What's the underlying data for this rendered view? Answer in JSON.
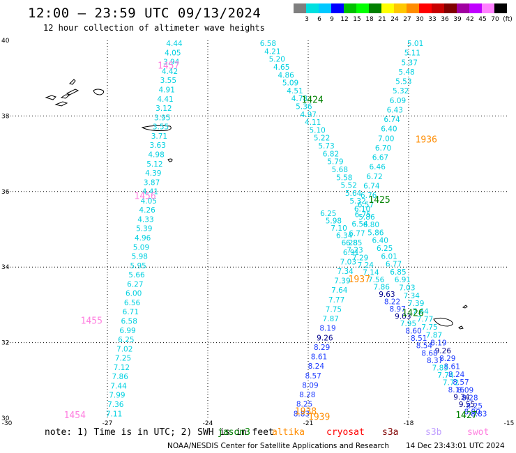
{
  "header": {
    "title": "12:00 – 23:59 UTC 09/13/2024",
    "subtitle": "12 hour collection of altimeter wave heights"
  },
  "scale": {
    "unit": "(ft)",
    "bins": [
      {
        "label": "3",
        "color": "#7f7f7f"
      },
      {
        "label": "6",
        "color": "#00e0e0"
      },
      {
        "label": "9",
        "color": "#00c8ff"
      },
      {
        "label": "12",
        "color": "#0000ff"
      },
      {
        "label": "15",
        "color": "#00c000"
      },
      {
        "label": "18",
        "color": "#00ff00"
      },
      {
        "label": "21",
        "color": "#008000"
      },
      {
        "label": "24",
        "color": "#ffff00"
      },
      {
        "label": "27",
        "color": "#ffc800"
      },
      {
        "label": "30",
        "color": "#ff8c00"
      },
      {
        "label": "33",
        "color": "#ff0000"
      },
      {
        "label": "36",
        "color": "#c80000"
      },
      {
        "label": "39",
        "color": "#800000"
      },
      {
        "label": "42",
        "color": "#a000a0"
      },
      {
        "label": "45",
        "color": "#c000ff"
      },
      {
        "label": "70",
        "color": "#ff80ff"
      },
      {
        "label": "",
        "color": "#000000"
      }
    ]
  },
  "axes": {
    "lon_ticks": [
      {
        "lon": -30,
        "label": "-30"
      },
      {
        "lon": -27,
        "label": "-27"
      },
      {
        "lon": -24,
        "label": "-24"
      },
      {
        "lon": -21,
        "label": "-21"
      },
      {
        "lon": -18,
        "label": "-18"
      },
      {
        "lon": -15,
        "label": "-15"
      }
    ],
    "lat_ticks": [
      {
        "lat": 30,
        "label": "30"
      },
      {
        "lat": 32,
        "label": "32"
      },
      {
        "lat": 34,
        "label": "34"
      },
      {
        "lat": 36,
        "label": "36"
      },
      {
        "lat": 38,
        "label": "38"
      },
      {
        "lat": 40,
        "label": "40"
      }
    ]
  },
  "tracks": [
    {
      "id": "track-1454-1457",
      "values": [
        "7.11",
        "7.36",
        "7.99",
        "7.44",
        "7.86",
        "7.12",
        "7.25",
        "7.02",
        "6.25",
        "6.99",
        "6.58",
        "6.71",
        "6.56",
        "6.00",
        "6.27",
        "5.66",
        "5.95",
        "5.98",
        "5.09",
        "4.96",
        "5.39",
        "4.33",
        "4.26",
        "4.05",
        "4.41",
        "3.87",
        "4.39",
        "5.12",
        "4.98",
        "3.63",
        "3.71",
        "3.55",
        "3.95",
        "3.12",
        "4.41",
        "4.91",
        "3.55",
        "4.42",
        "3.94",
        "4.05",
        "4.44"
      ],
      "start": [
        -26.8,
        30.05
      ],
      "end": [
        -25.0,
        39.85
      ]
    },
    {
      "id": "track-1424-1427",
      "values": [
        "6.58",
        "4.21",
        "5.20",
        "4.65",
        "4.86",
        "5.09",
        "4.51",
        "4.78",
        "5.36",
        "4.97",
        "4.11",
        "5.10",
        "5.22",
        "5.73",
        "6.82",
        "5.79",
        "5.68",
        "5.58",
        "5.52",
        "5.64",
        "5.32",
        "6.10",
        "5.86",
        "6.80",
        "5.86",
        "6.40",
        "6.25",
        "6.01",
        "6.77",
        "6.85",
        "6.91",
        "7.03",
        "7.34",
        "7.39",
        "7.64",
        "7.77",
        "7.75",
        "7.87",
        "8.19",
        "9.26",
        "8.29",
        "8.61",
        "8.24",
        "8.57",
        "8.09",
        "8.28",
        "8.25",
        "8.83"
      ],
      "start": [
        -22.2,
        39.85
      ],
      "end": [
        -15.9,
        30.05
      ]
    },
    {
      "id": "track-1936-1939",
      "values": [
        "8.83",
        "8.25",
        "8.28",
        "8.09",
        "8.57",
        "8.24",
        "8.61",
        "8.29",
        "9.26",
        "8.19",
        "7.87",
        "7.75",
        "7.77",
        "7.64",
        "7.39",
        "7.34",
        "7.03",
        "6.91",
        "6.85",
        "6.77",
        "6.54",
        "6.75",
        "6.57",
        "6.76",
        "6.74",
        "6.72",
        "6.46",
        "6.67",
        "6.70",
        "7.00",
        "6.40",
        "6.74",
        "6.43",
        "6.09",
        "5.32",
        "5.53",
        "5.48",
        "5.37",
        "5.11",
        "5.01"
      ],
      "start": [
        -21.2,
        30.05
      ],
      "end": [
        -17.8,
        39.85
      ]
    },
    {
      "id": "track-1425-1427-b",
      "values": [
        "6.25",
        "5.98",
        "7.10",
        "6.34",
        "6.28",
        "7.23",
        "7.29",
        "7.24",
        "7.14",
        "7.56",
        "7.86",
        "9.63",
        "8.22",
        "8.97",
        "9.03",
        "7.95",
        "8.60",
        "8.51",
        "8.54",
        "8.68",
        "8.37",
        "7.85",
        "7.74",
        "7.72",
        "8.16",
        "9.34",
        "9.55",
        "8.90"
      ],
      "start": [
        -20.4,
        35.35
      ],
      "end": [
        -16.1,
        30.1
      ]
    }
  ],
  "track_labels": [
    {
      "text": "1457",
      "lon": -25.5,
      "lat": 39.25,
      "color": "#ff80e0"
    },
    {
      "text": "1456",
      "lon": -26.2,
      "lat": 35.8,
      "color": "#ff80e0"
    },
    {
      "text": "1455",
      "lon": -27.8,
      "lat": 32.5,
      "color": "#ff80e0"
    },
    {
      "text": "1454",
      "lon": -28.3,
      "lat": 30.0,
      "color": "#ff80e0"
    },
    {
      "text": "1424",
      "lon": -21.2,
      "lat": 38.35,
      "color": "#008000"
    },
    {
      "text": "1425",
      "lon": -19.2,
      "lat": 35.7,
      "color": "#008000"
    },
    {
      "text": "1426",
      "lon": -18.2,
      "lat": 32.7,
      "color": "#008000"
    },
    {
      "text": "1427",
      "lon": -16.6,
      "lat": 30.0,
      "color": "#008000"
    },
    {
      "text": "1936",
      "lon": -17.8,
      "lat": 37.3,
      "color": "#ff8c00"
    },
    {
      "text": "1937",
      "lon": -19.8,
      "lat": 33.6,
      "color": "#ff8c00"
    },
    {
      "text": "1938",
      "lon": -21.4,
      "lat": 30.1,
      "color": "#ff8c00"
    },
    {
      "text": "1939",
      "lon": -21.0,
      "lat": 29.95,
      "color": "#ff8c00"
    }
  ],
  "note": {
    "text": "note: 1) Time is in UTC; 2) SWH is in feet",
    "satellites": [
      {
        "name": "jason3",
        "color": "#008000"
      },
      {
        "name": "altika",
        "color": "#ff8c00"
      },
      {
        "name": "cryosat",
        "color": "#ff0000"
      },
      {
        "name": "s3a",
        "color": "#800000"
      },
      {
        "name": "s3b",
        "color": "#c0a0ff"
      },
      {
        "name": "swot",
        "color": "#ff80e0"
      }
    ]
  },
  "footer": {
    "agency": "NOAA/NESDIS Center for Satellite Applications and Research",
    "timestamp": "14 Dec 23:43:01 UTC 2024"
  }
}
